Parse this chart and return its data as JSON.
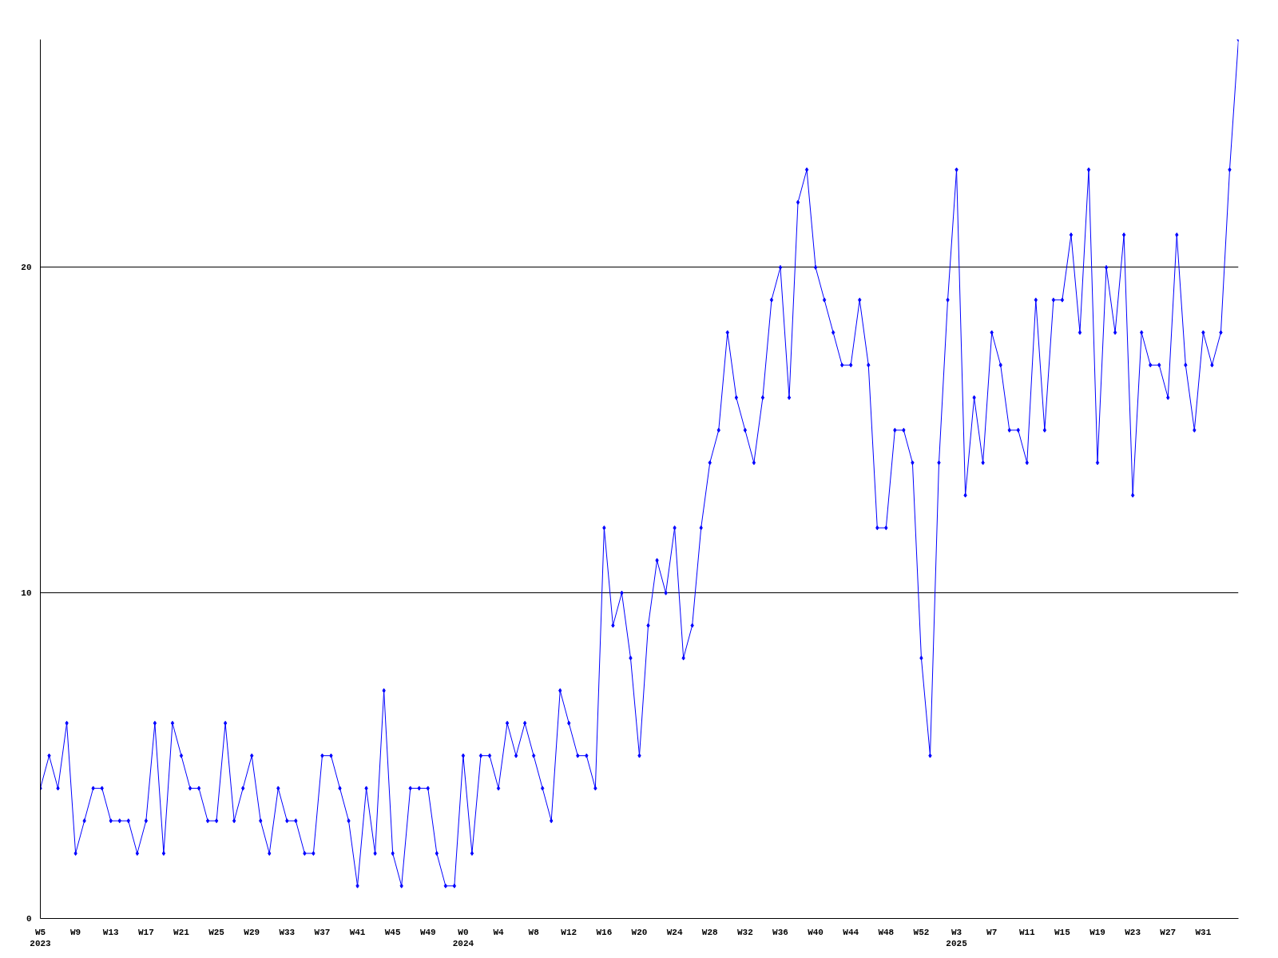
{
  "chart_data": {
    "type": "line",
    "categories": [
      "W5\n2023",
      null,
      null,
      null,
      "W9",
      null,
      null,
      null,
      "W13",
      null,
      null,
      null,
      "W17",
      null,
      null,
      null,
      "W21",
      null,
      null,
      null,
      "W25",
      null,
      null,
      null,
      "W29",
      null,
      null,
      null,
      "W33",
      null,
      null,
      null,
      "W37",
      null,
      null,
      null,
      "W41",
      null,
      null,
      null,
      "W45",
      null,
      null,
      null,
      "W49",
      null,
      null,
      null,
      "W0\n2024",
      null,
      null,
      null,
      "W4",
      null,
      null,
      null,
      "W8",
      null,
      null,
      null,
      "W12",
      null,
      null,
      null,
      "W16",
      null,
      null,
      null,
      "W20",
      null,
      null,
      null,
      "W24",
      null,
      null,
      null,
      "W28",
      null,
      null,
      null,
      "W32",
      null,
      null,
      null,
      "W36",
      null,
      null,
      null,
      "W40",
      null,
      null,
      null,
      "W44",
      null,
      null,
      null,
      "W48",
      null,
      null,
      null,
      "W52",
      null,
      null,
      null,
      "W3\n2025",
      null,
      null,
      null,
      "W7",
      null,
      null,
      null,
      "W11",
      null,
      null,
      null,
      "W15",
      null,
      null,
      null,
      "W19",
      null,
      null,
      null,
      "W23",
      null,
      null,
      null,
      "W27",
      null,
      null,
      null,
      "W31",
      null,
      null,
      null,
      null
    ],
    "series": [
      {
        "color": "#0000ff",
        "values": [
          4,
          5,
          4,
          6,
          2,
          3,
          4,
          4,
          3,
          3,
          3,
          2,
          3,
          6,
          2,
          6,
          5,
          4,
          4,
          3,
          3,
          6,
          3,
          4,
          5,
          3,
          2,
          4,
          3,
          3,
          2,
          2,
          5,
          5,
          4,
          3,
          1,
          4,
          2,
          7,
          2,
          1,
          4,
          4,
          4,
          2,
          1,
          1,
          5,
          2,
          5,
          5,
          4,
          6,
          5,
          6,
          5,
          4,
          3,
          7,
          6,
          5,
          5,
          4,
          12,
          9,
          10,
          8,
          5,
          9,
          11,
          10,
          12,
          8,
          9,
          12,
          14,
          15,
          18,
          16,
          15,
          14,
          16,
          19,
          20,
          16,
          22,
          23,
          20,
          19,
          18,
          17,
          17,
          19,
          17,
          12,
          12,
          15,
          15,
          14,
          8,
          5,
          14,
          19,
          23,
          13,
          16,
          14,
          18,
          17,
          15,
          15,
          14,
          19,
          15,
          19,
          19,
          21,
          18,
          23,
          14,
          20,
          18,
          21,
          13,
          18,
          17,
          17,
          16,
          21,
          17,
          15,
          18,
          17,
          18,
          23,
          27
        ]
      }
    ],
    "ylim": [
      0,
      27
    ],
    "yticks": [
      0,
      10,
      20
    ],
    "grid": "y",
    "marker": "diamond",
    "line_style": "solid"
  }
}
